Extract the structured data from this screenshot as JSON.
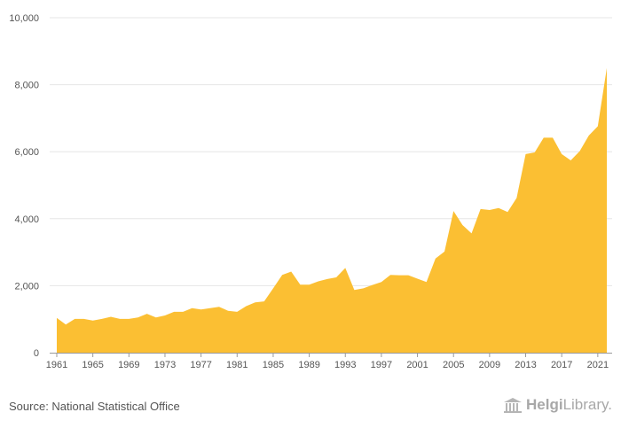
{
  "source": "Source: National Statistical Office",
  "brand": {
    "bold": "Helgi",
    "light": "Library."
  },
  "colors": {
    "area": "#FBBF33",
    "grid": "#e6e6e6",
    "axis": "#999999"
  },
  "chart_data": {
    "type": "area",
    "title": "",
    "xlabel": "",
    "ylabel": "",
    "grid": true,
    "x": [
      1961,
      1962,
      1963,
      1964,
      1965,
      1966,
      1967,
      1968,
      1969,
      1970,
      1971,
      1972,
      1973,
      1974,
      1975,
      1976,
      1977,
      1978,
      1979,
      1980,
      1981,
      1982,
      1983,
      1984,
      1985,
      1986,
      1987,
      1988,
      1989,
      1990,
      1991,
      1992,
      1993,
      1994,
      1995,
      1996,
      1997,
      1998,
      1999,
      2000,
      2001,
      2002,
      2003,
      2004,
      2005,
      2006,
      2007,
      2008,
      2009,
      2010,
      2011,
      2012,
      2013,
      2014,
      2015,
      2016,
      2017,
      2018,
      2019,
      2020,
      2021,
      2022
    ],
    "values": [
      1040,
      840,
      1010,
      1010,
      960,
      1010,
      1070,
      1010,
      1010,
      1050,
      1160,
      1050,
      1110,
      1220,
      1220,
      1330,
      1290,
      1330,
      1370,
      1250,
      1220,
      1390,
      1500,
      1530,
      1920,
      2320,
      2420,
      2030,
      2030,
      2130,
      2200,
      2250,
      2530,
      1870,
      1920,
      2020,
      2110,
      2320,
      2310,
      2310,
      2210,
      2110,
      2810,
      3020,
      4230,
      3810,
      3560,
      4290,
      4260,
      4320,
      4200,
      4620,
      5930,
      5980,
      6420,
      6420,
      5930,
      5740,
      6020,
      6480,
      6760,
      8500
    ],
    "xlim": [
      1961,
      2022
    ],
    "ylim": [
      0,
      10000
    ],
    "y_ticks": [
      "0",
      "2,000",
      "4,000",
      "6,000",
      "8,000",
      "10,000"
    ],
    "x_ticks": [
      "1961",
      "1965",
      "1969",
      "1973",
      "1977",
      "1981",
      "1985",
      "1989",
      "1993",
      "1997",
      "2001",
      "2005",
      "2009",
      "2013",
      "2017",
      "2021"
    ]
  }
}
